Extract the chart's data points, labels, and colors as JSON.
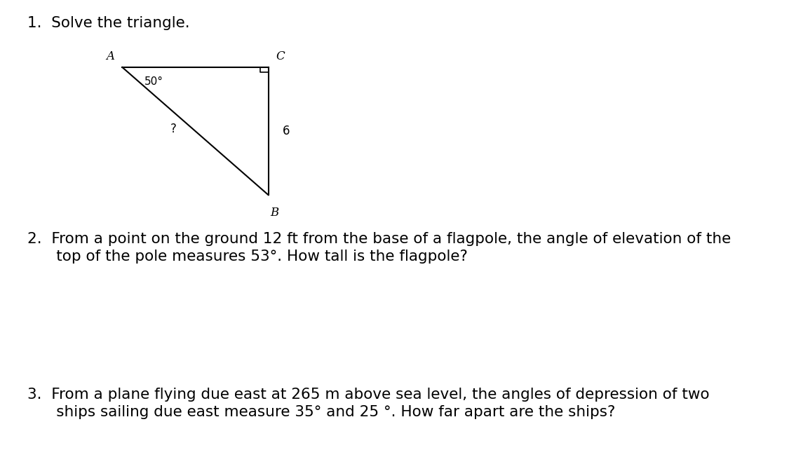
{
  "title1": "1.  Solve the triangle.",
  "q2_line1": "2.  From a point on the ground 12 ft from the base of a flagpole, the angle of elevation of the",
  "q2_line2": "      top of the pole measures 53°. How tall is the flagpole?",
  "q3_line1": "3.  From a plane flying due east at 265 m above sea level, the angles of depression of two",
  "q3_line2": "      ships sailing due east measure 35° and 25 °. How far apart are the ships?",
  "bg_color": "#ffffff",
  "text_color": "#000000",
  "triangle": {
    "A": [
      0.155,
      0.855
    ],
    "C": [
      0.34,
      0.855
    ],
    "B": [
      0.34,
      0.58
    ],
    "angle_A_label": "50°",
    "side_label": "6",
    "hyp_label": "?",
    "vertex_A": "A",
    "vertex_B": "B",
    "vertex_C": "C"
  },
  "font_size_text": 15.5,
  "font_size_triangle_vertex": 12,
  "font_size_angle": 11,
  "font_size_side": 12
}
